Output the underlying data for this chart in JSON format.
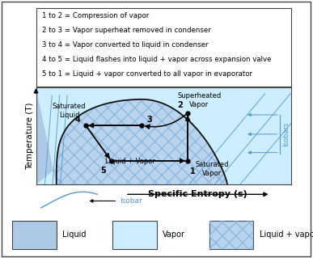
{
  "annotation_lines": [
    "1 to 2 = Compression of vapor",
    "2 to 3 = Vapor superheat removed in condenser",
    "3 to 4 = Vapor converted to liquid in condenser",
    "4 to 5 = Liquid flashes into liquid + vapor across expansion valve",
    "5 to 1 = Liquid + vapor converted to all vapor in evaporator"
  ],
  "xlabel": "Specific Entropy (s)",
  "ylabel": "Temperature (T)",
  "liquid_color": "#aec9e8",
  "vapor_color": "#cceeff",
  "lv_fill_color": "#b8d4ee",
  "lv_hatch_color": "#8ab4d8",
  "isobar_color": "#5599cc",
  "dome_color": "#111111",
  "cycle_color": "#000000",
  "isobars_text_color": "#5599cc",
  "bg_plot_color": "#d0e8f8",
  "points": {
    "1": [
      0.595,
      0.245
    ],
    "2": [
      0.595,
      0.74
    ],
    "3": [
      0.415,
      0.61
    ],
    "4": [
      0.195,
      0.61
    ],
    "5": [
      0.295,
      0.245
    ]
  }
}
